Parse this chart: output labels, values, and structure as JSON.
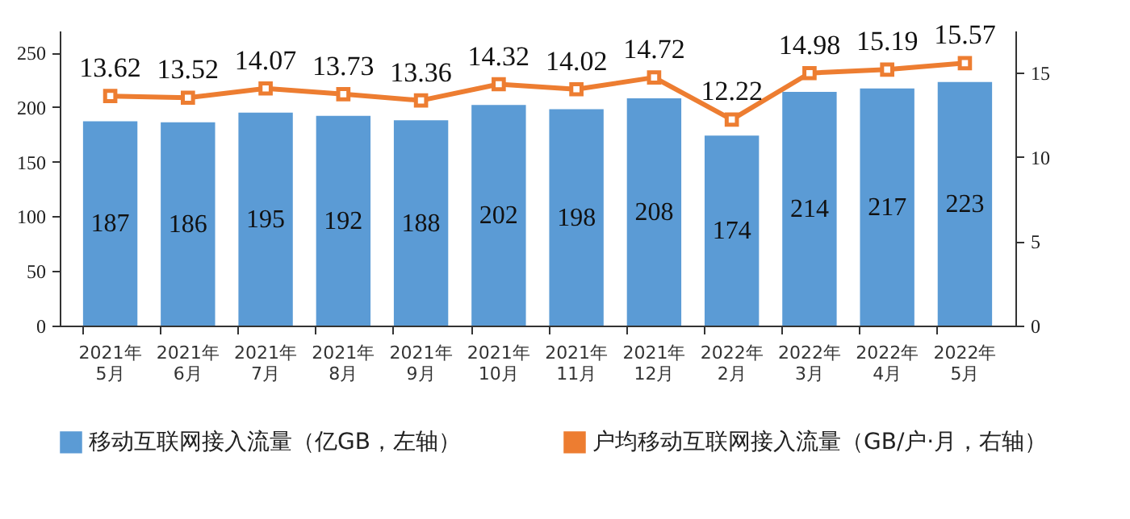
{
  "chart_data": {
    "type": "bar",
    "categories": [
      "2021年\n5月",
      "2021年\n6月",
      "2021年\n7月",
      "2021年\n8月",
      "2021年\n9月",
      "2021年\n10月",
      "2021年\n11月",
      "2021年\n12月",
      "2022年\n2月",
      "2022年\n3月",
      "2022年\n4月",
      "2022年\n5月"
    ],
    "series": [
      {
        "name": "移动互联网接入流量（亿GB，左轴）",
        "color": "#5b9bd5",
        "values": [
          187,
          186,
          195,
          192,
          188,
          202,
          198,
          208,
          174,
          214,
          217,
          223
        ]
      },
      {
        "name": "户均移动互联网接入流量（GB/户·月，右轴）",
        "type": "line",
        "axis": "y2",
        "color": "#ed7d31",
        "marker": "square",
        "values": [
          13.62,
          13.52,
          14.07,
          13.73,
          13.36,
          14.32,
          14.02,
          14.72,
          12.22,
          14.98,
          15.19,
          15.57
        ]
      }
    ],
    "ylim": [
      0,
      270
    ],
    "yticks": [
      0,
      50,
      100,
      150,
      200,
      250
    ],
    "y2lim": [
      0,
      17.5
    ],
    "y2ticks": [
      0,
      5,
      10,
      15
    ],
    "data_labels": true,
    "legend": "bottom",
    "grid": false
  }
}
